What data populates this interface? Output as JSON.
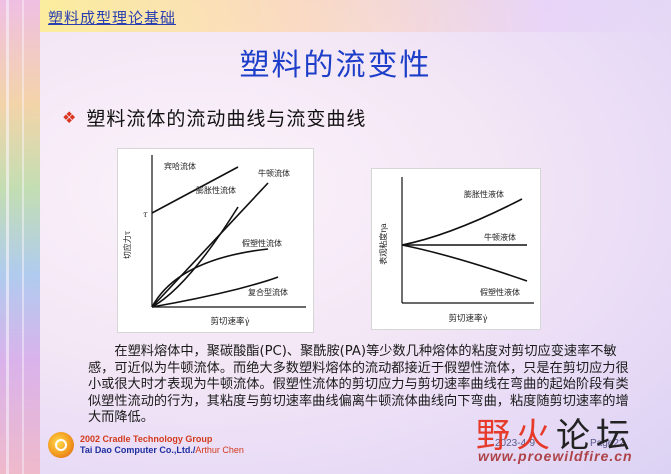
{
  "header": {
    "title": "塑料成型理论基础"
  },
  "main_title": "塑料的流变性",
  "bullet": {
    "icon": "diamond-icon",
    "text": "塑料流体的流动曲线与流变曲线"
  },
  "chart_data": [
    {
      "type": "line",
      "ylabel": "切应力τ",
      "xlabel": "剪切速率γ̇",
      "y_tick_label": "τ",
      "series": [
        {
          "name": "宾哈流体",
          "shape": "linear-with-yield"
        },
        {
          "name": "牛顿流体",
          "shape": "linear"
        },
        {
          "name": "膨胀性流体",
          "shape": "concave-up"
        },
        {
          "name": "假塑性流体",
          "shape": "concave-down"
        },
        {
          "name": "复合型流体",
          "shape": "mixed"
        }
      ]
    },
    {
      "type": "line",
      "ylabel": "表观粘度ηa",
      "xlabel": "剪切速率γ̇",
      "series": [
        {
          "name": "膨胀性液体",
          "shape": "increasing"
        },
        {
          "name": "牛顿液体",
          "shape": "constant"
        },
        {
          "name": "假塑性液体",
          "shape": "decreasing"
        }
      ]
    }
  ],
  "paragraph": "在塑料熔体中，聚碳酸酯(PC)、聚酰胺(PA)等少数几种熔体的粘度对剪切应变速率不敏感，可近似为牛顿流体。而绝大多数塑料熔体的流动都接近于假塑性流体，只是在剪切应力很小或很大时才表现为牛顿流体。假塑性流体的剪切应力与剪切速率曲线在弯曲的起始阶段有类似塑性流动的行为，其粘度与剪切速率曲线偏离牛顿流体曲线向下弯曲，粘度随剪切速率的增大而降低。",
  "footer": {
    "logo_icon": "cradle-logo-icon",
    "org_line1": "2002 Cradle Technology Group",
    "org_line2": "Tai Dao Computer Co.,Ltd./",
    "author": "Arthur Chen",
    "date": "2023-4-9",
    "page": "Page22"
  },
  "watermark": {
    "cn_1": "野火",
    "cn_2": "论坛",
    "url": "www.proewildfire.cn"
  },
  "colors": {
    "title_blue": "#1d3ec8",
    "bullet_red": "#d9351f",
    "watermark_red": "#e63b2a"
  }
}
